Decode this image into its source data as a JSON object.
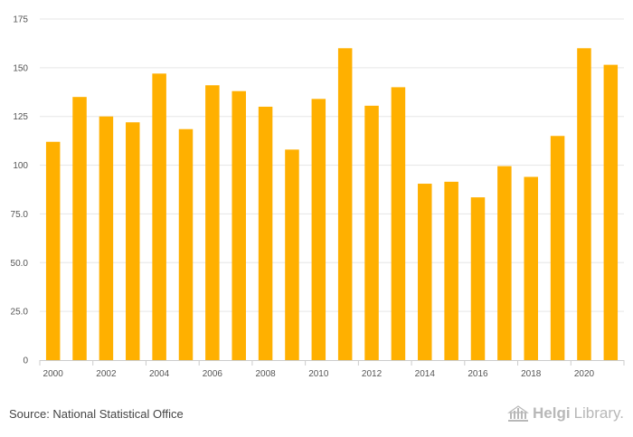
{
  "chart_data": {
    "type": "bar",
    "categories": [
      "2000",
      "2001",
      "2002",
      "2003",
      "2004",
      "2005",
      "2006",
      "2007",
      "2008",
      "2009",
      "2010",
      "2011",
      "2012",
      "2013",
      "2014",
      "2015",
      "2016",
      "2017",
      "2018",
      "2019",
      "2020",
      "2021"
    ],
    "x_tick_labels": [
      "2000",
      "2002",
      "2004",
      "2006",
      "2008",
      "2010",
      "2012",
      "2014",
      "2016",
      "2018",
      "2020"
    ],
    "values": [
      112,
      135,
      125,
      122,
      147,
      118.5,
      141,
      138,
      130,
      108,
      134,
      160,
      130.5,
      140,
      90.5,
      91.5,
      83.5,
      99.5,
      94,
      115,
      160,
      151.5
    ],
    "y_ticks": [
      0,
      25,
      50,
      75,
      100,
      125,
      150,
      175
    ],
    "y_tick_labels": [
      "0",
      "25.0",
      "50.0",
      "75.0",
      "100",
      "125",
      "150",
      "175"
    ],
    "ylim": [
      0,
      175
    ],
    "title": "",
    "xlabel": "",
    "ylabel": "",
    "grid": true,
    "bar_color": "#FFB000"
  },
  "footer": {
    "source": "Source: National Statistical Office",
    "brand_part1": "Helgi",
    "brand_part2": "Library."
  },
  "colors": {
    "grid": "#e6e6e6",
    "axis": "#cccccc",
    "brand": "#b8b8b8"
  }
}
